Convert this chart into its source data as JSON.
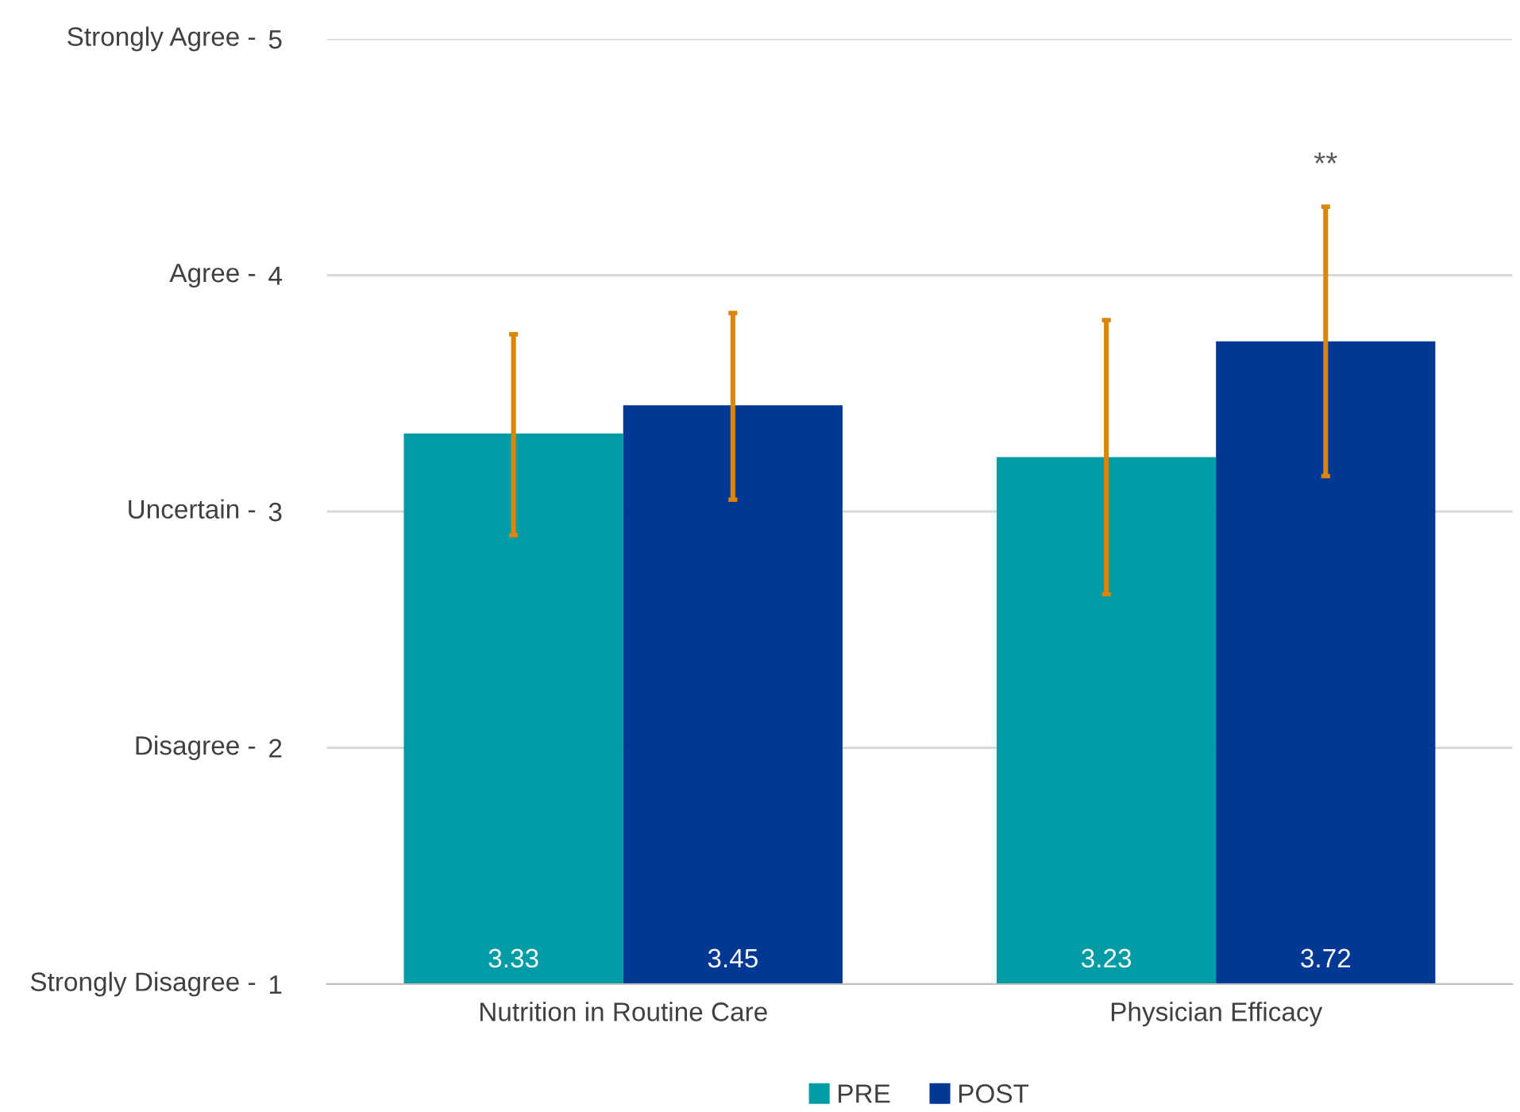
{
  "chart_data": {
    "type": "bar",
    "categories": [
      "Nutrition in Routine Care",
      "Physician Efficacy"
    ],
    "series": [
      {
        "name": "PRE",
        "color": "#009ca6",
        "values": [
          3.33,
          3.23
        ],
        "errors": [
          [
            2.9,
            3.75
          ],
          [
            2.65,
            3.81
          ]
        ]
      },
      {
        "name": "POST",
        "color": "#003893",
        "values": [
          3.45,
          3.72
        ],
        "errors": [
          [
            3.05,
            3.84
          ],
          [
            3.15,
            4.29
          ]
        ]
      }
    ],
    "ylim": [
      1,
      5
    ],
    "yticks": [
      1,
      2,
      3,
      4,
      5
    ],
    "grid": "y",
    "legend": "bottom",
    "data_labels": true,
    "annotations": [
      "Strongly Disagree -",
      "Disagree -",
      "Uncertain -",
      "Agree -",
      "Strongly Agree -",
      "**"
    ]
  }
}
